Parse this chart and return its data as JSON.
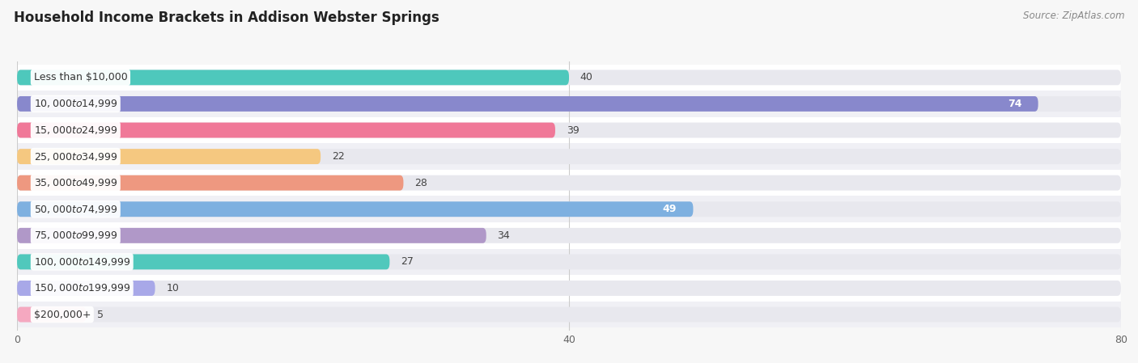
{
  "title": "Household Income Brackets in Addison Webster Springs",
  "source": "Source: ZipAtlas.com",
  "categories": [
    "Less than $10,000",
    "$10,000 to $14,999",
    "$15,000 to $24,999",
    "$25,000 to $34,999",
    "$35,000 to $49,999",
    "$50,000 to $74,999",
    "$75,000 to $99,999",
    "$100,000 to $149,999",
    "$150,000 to $199,999",
    "$200,000+"
  ],
  "values": [
    40,
    74,
    39,
    22,
    28,
    49,
    34,
    27,
    10,
    5
  ],
  "bar_colors": [
    "#4EC8BC",
    "#8888CC",
    "#F07898",
    "#F5C880",
    "#EE9880",
    "#7EB0E0",
    "#B098C8",
    "#50C8BC",
    "#A8A8E8",
    "#F5A8C0"
  ],
  "value_inside": [
    false,
    true,
    false,
    false,
    false,
    true,
    false,
    false,
    false,
    false
  ],
  "row_bg_colors": [
    "#ffffff",
    "#f0f0f5",
    "#ffffff",
    "#f0f0f5",
    "#ffffff",
    "#f0f0f5",
    "#ffffff",
    "#f0f0f5",
    "#ffffff",
    "#f0f0f5"
  ],
  "xlim": [
    0,
    80
  ],
  "xticks": [
    0,
    40,
    80
  ],
  "background_color": "#f7f7f7",
  "bar_track_color": "#e8e8ee",
  "title_fontsize": 12,
  "source_fontsize": 8.5,
  "value_fontsize": 9,
  "category_fontsize": 9
}
